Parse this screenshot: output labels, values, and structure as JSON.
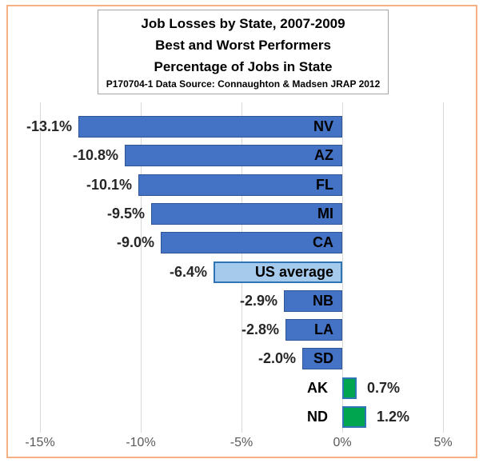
{
  "title_box": {
    "title": "Job Losses by State, 2007-2009",
    "subtitle1": "Best and Worst Performers",
    "subtitle2": "Percentage of Jobs in State",
    "source_note": "P170704-1 Data Source: Connaughton & Madsen JRAP 2012"
  },
  "chart_data": {
    "type": "bar",
    "orientation": "horizontal",
    "title": "Job Losses by State, 2007-2009",
    "subtitle": [
      "Best and Worst Performers",
      "Percentage of Jobs in State"
    ],
    "source_note": "P170704-1 Data Source: Connaughton & Madsen JRAP 2012",
    "xlabel": "",
    "ylabel": "",
    "xlim": [
      -16.7,
      7.2
    ],
    "grid": true,
    "x_ticks": [
      {
        "value": -15,
        "label": "-15%"
      },
      {
        "value": -10,
        "label": "-10%"
      },
      {
        "value": -5,
        "label": "-5%"
      },
      {
        "value": 0,
        "label": "0%"
      },
      {
        "value": 5,
        "label": "5%"
      }
    ],
    "bars": [
      {
        "state": "NV",
        "value": -13.1,
        "label": "-13.1%",
        "kind": "loss"
      },
      {
        "state": "AZ",
        "value": -10.8,
        "label": "-10.8%",
        "kind": "loss"
      },
      {
        "state": "FL",
        "value": -10.1,
        "label": "-10.1%",
        "kind": "loss"
      },
      {
        "state": "MI",
        "value": -9.5,
        "label": "-9.5%",
        "kind": "loss"
      },
      {
        "state": "CA",
        "value": -9.0,
        "label": "-9.0%",
        "kind": "loss"
      },
      {
        "state": "US average",
        "value": -6.4,
        "label": "-6.4%",
        "kind": "average"
      },
      {
        "state": "NB",
        "value": -2.9,
        "label": "-2.9%",
        "kind": "loss"
      },
      {
        "state": "LA",
        "value": -2.8,
        "label": "-2.8%",
        "kind": "loss"
      },
      {
        "state": "SD",
        "value": -2.0,
        "label": "-2.0%",
        "kind": "loss"
      },
      {
        "state": "AK",
        "value": 0.7,
        "label": "0.7%",
        "kind": "gain"
      },
      {
        "state": "ND",
        "value": 1.2,
        "label": "1.2%",
        "kind": "gain"
      }
    ],
    "colors": {
      "loss_fill": "#4472C4",
      "loss_border": "#2F5597",
      "average_fill": "#A6CAEC",
      "average_border": "#2E75B6",
      "gain_fill": "#00A550",
      "gain_border": "#2E75B6",
      "gridline": "#D9D9D9",
      "axis_text": "#595959",
      "frame_border": "#F5B183",
      "title_box_border": "#A6A6A6"
    }
  }
}
